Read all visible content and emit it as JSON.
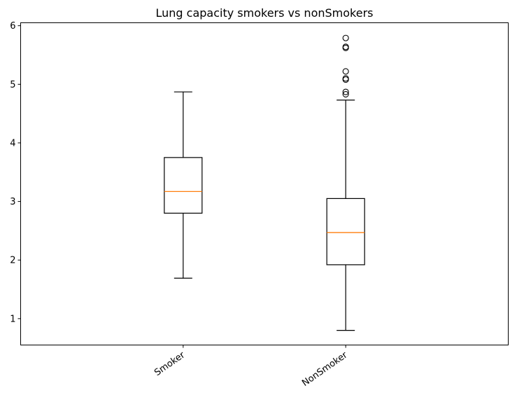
{
  "chart_data": {
    "type": "box",
    "title": "Lung capacity smokers vs nonSmokers",
    "xlabel": "",
    "ylabel": "",
    "categories": [
      "Smoker",
      "NonSmoker"
    ],
    "ylim": [
      0.55,
      6.05
    ],
    "yticks": [
      1,
      2,
      3,
      4,
      5,
      6
    ],
    "xtick_rotation": 35,
    "grid": false,
    "boxes": [
      {
        "category": "Smoker",
        "whisker_low": 1.69,
        "q1": 2.8,
        "median": 3.17,
        "q3": 3.75,
        "whisker_high": 4.87,
        "outliers": []
      },
      {
        "category": "NonSmoker",
        "whisker_low": 0.8,
        "q1": 1.92,
        "median": 2.47,
        "q3": 3.05,
        "whisker_high": 4.73,
        "outliers": [
          4.83,
          4.87,
          5.08,
          5.1,
          5.22,
          5.62,
          5.64,
          5.79
        ]
      }
    ],
    "colors": {
      "box": "#000000",
      "median": "#ff7f0e",
      "background": "#ffffff"
    }
  }
}
